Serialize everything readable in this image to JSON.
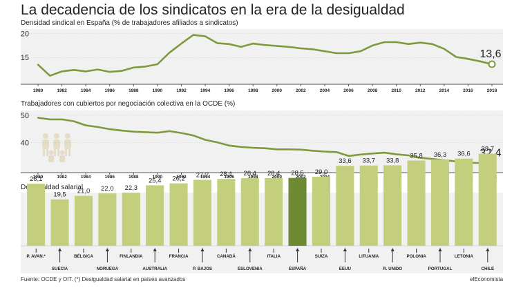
{
  "header": {
    "title": "La decadencia de los sindicatos en la era de la desigualdad"
  },
  "footer": {
    "source": "Fuente: OCDE y OIT. (*) Desigualdad salarial en países avanzados",
    "brand": "elEconomista"
  },
  "colors": {
    "line": "#7e9a3c",
    "bar": "#c4cf7e",
    "bar_highlight": "#6f8a35",
    "panel_bg": "#f1f1f1",
    "grid": "#bdbdbd"
  },
  "chart_data": [
    {
      "type": "line",
      "title": "Densidad sindical en España (% de trabajadores afiliados a sindicatos)",
      "x": [
        1980,
        1981,
        1982,
        1983,
        1984,
        1985,
        1986,
        1987,
        1988,
        1989,
        1990,
        1991,
        1992,
        1993,
        1994,
        1995,
        1996,
        1997,
        1998,
        1999,
        2000,
        2001,
        2002,
        2003,
        2004,
        2005,
        2006,
        2007,
        2008,
        2009,
        2010,
        2011,
        2012,
        2013,
        2014,
        2015,
        2016,
        2017,
        2018
      ],
      "y": [
        13.5,
        11.2,
        12.1,
        12.4,
        12.1,
        12.5,
        12.0,
        12.2,
        12.9,
        13.1,
        13.6,
        16.0,
        17.9,
        19.7,
        19.4,
        18.0,
        17.8,
        17.2,
        17.9,
        17.6,
        17.4,
        17.2,
        16.9,
        16.7,
        16.3,
        15.9,
        15.9,
        16.3,
        17.5,
        18.2,
        18.2,
        17.8,
        18.1,
        17.8,
        16.8,
        15.1,
        14.7,
        14.2,
        13.6
      ],
      "xticks": [
        "1980",
        "1982",
        "1984",
        "1986",
        "1988",
        "1990",
        "1992",
        "1994",
        "1996",
        "1998",
        "2000",
        "2002",
        "2004",
        "2006",
        "2008",
        "2010",
        "2012",
        "2014",
        "2016",
        "2018"
      ],
      "yticks": [
        "20",
        "15"
      ],
      "ylim": [
        10,
        20.5
      ],
      "end_label": "13,6",
      "grid": false
    },
    {
      "type": "line",
      "title": "Trabajadores con cubiertos por negociación colectiva en la OCDE (%)",
      "x": [
        1980,
        1981,
        1982,
        1983,
        1984,
        1985,
        1986,
        1987,
        1988,
        1989,
        1990,
        1991,
        1992,
        1993,
        1994,
        1995,
        1996,
        1997,
        1998,
        1999,
        2000,
        2001,
        2002,
        2003,
        2004,
        2005,
        2006,
        2007,
        2008,
        2009,
        2010,
        2011,
        2012,
        2013,
        2014,
        2015,
        2016,
        2017,
        2018
      ],
      "y": [
        49.1,
        48.5,
        48.5,
        47.8,
        46.3,
        45.7,
        44.9,
        44.4,
        44.0,
        43.8,
        43.6,
        44.2,
        43.5,
        42.6,
        41.0,
        40.1,
        38.9,
        38.4,
        38.1,
        37.9,
        37.5,
        37.5,
        37.4,
        37.0,
        36.7,
        36.5,
        35.1,
        35.6,
        36.0,
        36.3,
        35.7,
        35.3,
        34.4,
        34.0,
        33.5,
        33.1,
        32.6,
        32.5,
        32.4
      ],
      "xticks": [
        "1980",
        "1982",
        "1984",
        "1986",
        "1988",
        "1990",
        "1992",
        "1994",
        "1996",
        "1998",
        "2000",
        "2002",
        "2004",
        "2006",
        "2008",
        "2010",
        "2012",
        "2014",
        "2016",
        "2018"
      ],
      "yticks": [
        "50",
        "40"
      ],
      "ylim": [
        31,
        51
      ],
      "end_label": "32,4",
      "grid": false
    },
    {
      "type": "bar",
      "title": "Desigualdad salarial",
      "categories": [
        "P. AVAN.*",
        "SUECIA",
        "BÉLGICA",
        "NORUEGA",
        "FINLANDIA",
        "AUSTRALIA",
        "FRANCIA",
        "P. BAJOS",
        "CANADÁ",
        "ESLOVENIA",
        "ITALIA",
        "ESPAÑA",
        "SUIZA",
        "EEUU",
        "LITUANIA",
        "R. UNIDO",
        "POLONIA",
        "PORTUGAL",
        "LETONIA",
        "CHILE"
      ],
      "values": [
        26.1,
        19.5,
        21.0,
        22.0,
        22.3,
        25.4,
        26.2,
        27.7,
        28.1,
        28.4,
        28.4,
        28.5,
        29.0,
        33.6,
        33.7,
        33.8,
        35.8,
        36.3,
        36.6,
        38.7
      ],
      "value_labels": [
        "26,1",
        "19,5",
        "21,0",
        "22,0",
        "22,3",
        "25,4",
        "26,2",
        "27,7",
        "28,1",
        "28,4",
        "28,4",
        "28,5",
        "29,0",
        "33,6",
        "33,7",
        "33,8",
        "35,8",
        "36,3",
        "36,6",
        "38,7"
      ],
      "highlight": "ESPAÑA",
      "ylim": [
        0,
        40
      ]
    }
  ]
}
